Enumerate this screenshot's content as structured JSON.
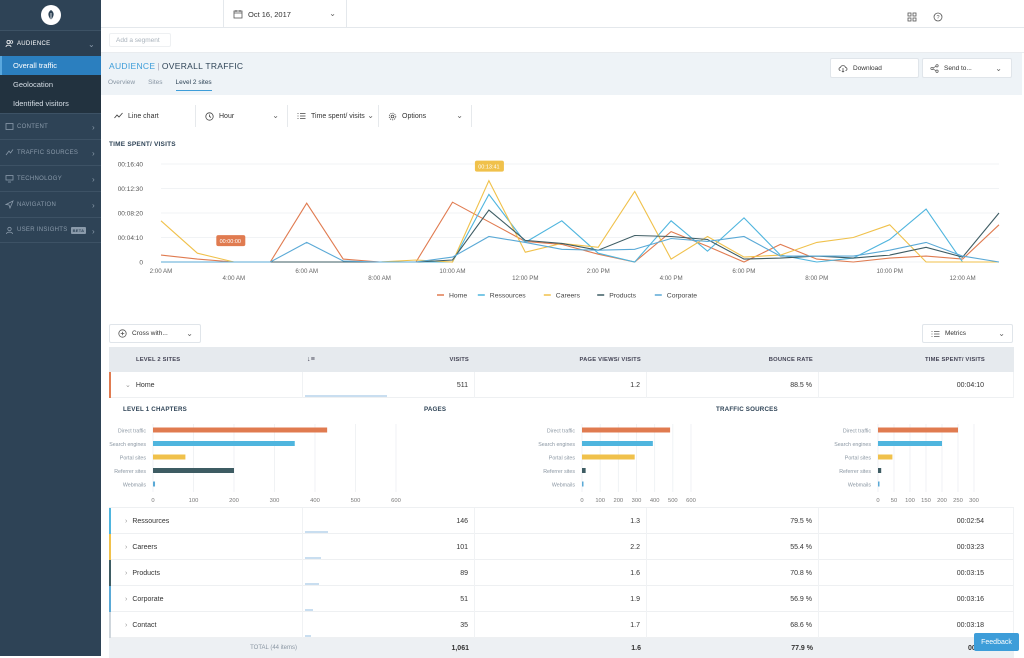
{
  "sidebar": {
    "sections": [
      {
        "label": "AUDIENCE",
        "icon": "users-icon",
        "active": true
      },
      {
        "label": "CONTENT",
        "icon": "content-icon"
      },
      {
        "label": "TRAFFIC SOURCES",
        "icon": "traffic-icon"
      },
      {
        "label": "TECHNOLOGY",
        "icon": "monitor-icon"
      },
      {
        "label": "NAVIGATION",
        "icon": "send-icon"
      },
      {
        "label": "USER INSIGHTS",
        "icon": "user-insights-icon",
        "badge": "BETA"
      }
    ],
    "audience_items": [
      {
        "label": "Overall traffic",
        "selected": true
      },
      {
        "label": "Geolocation"
      },
      {
        "label": "Identified visitors"
      }
    ]
  },
  "topbar": {
    "date": "Oct 16, 2017"
  },
  "segment": {
    "placeholder": "Add a segment"
  },
  "header": {
    "section": "AUDIENCE",
    "page": "OVERALL TRAFFIC",
    "tabs": [
      "Overview",
      "Sites",
      "Level 2 sites"
    ],
    "active_tab": "Level 2 sites",
    "download_label": "Download",
    "send_label": "Send to..."
  },
  "toolbar": {
    "chart_type": "Line chart",
    "granularity": "Hour",
    "metric": "Time spent/ visits",
    "options": "Options"
  },
  "chart_title": "TIME SPENT/ VISITS",
  "chart_data": {
    "type": "line",
    "x": [
      "2:00 AM",
      "3:00 AM",
      "4:00 AM",
      "5:00 AM",
      "6:00 AM",
      "7:00 AM",
      "8:00 AM",
      "9:00 AM",
      "10:00 AM",
      "11:00 AM",
      "12:00 PM",
      "1:00 PM",
      "2:00 PM",
      "3:00 PM",
      "4:00 PM",
      "5:00 PM",
      "6:00 PM",
      "7:00 PM",
      "8:00 PM",
      "9:00 PM",
      "10:00 PM",
      "11:00 PM",
      "12:00 AM",
      "1:00 AM"
    ],
    "x_tick_labels": [
      "2:00 AM",
      "4:00 AM",
      "6:00 AM",
      "8:00 AM",
      "10:00 AM",
      "12:00 PM",
      "2:00 PM",
      "4:00 PM",
      "6:00 PM",
      "8:00 PM",
      "10:00 PM",
      "12:00 AM"
    ],
    "y_tick_labels": [
      "0",
      "00:04:10",
      "00:08:20",
      "00:12:30",
      "00:16:40"
    ],
    "ylim_seconds": [
      0,
      1000
    ],
    "series": [
      {
        "name": "Home",
        "color": "#e07b50",
        "values": [
          70,
          30,
          0,
          0,
          600,
          30,
          0,
          0,
          610,
          410,
          210,
          180,
          80,
          0,
          310,
          160,
          0,
          180,
          30,
          0,
          40,
          60,
          30,
          380
        ]
      },
      {
        "name": "Ressources",
        "color": "#4fb5de",
        "values": [
          0,
          0,
          0,
          0,
          0,
          0,
          0,
          0,
          0,
          690,
          200,
          420,
          90,
          0,
          420,
          110,
          450,
          70,
          0,
          40,
          230,
          540,
          0,
          0
        ]
      },
      {
        "name": "Careers",
        "color": "#f0c14b",
        "values": [
          420,
          90,
          0,
          0,
          0,
          0,
          0,
          20,
          0,
          830,
          100,
          190,
          150,
          720,
          30,
          260,
          50,
          70,
          200,
          250,
          380,
          0,
          0,
          0
        ]
      },
      {
        "name": "Products",
        "color": "#3e5c63",
        "values": [
          0,
          0,
          0,
          0,
          0,
          0,
          0,
          0,
          20,
          530,
          220,
          190,
          120,
          270,
          260,
          230,
          30,
          40,
          60,
          40,
          70,
          150,
          50,
          500
        ]
      },
      {
        "name": "Corporate",
        "color": "#5aa9d6",
        "values": [
          0,
          0,
          0,
          0,
          200,
          10,
          0,
          0,
          50,
          260,
          200,
          130,
          120,
          130,
          240,
          210,
          260,
          60,
          60,
          60,
          120,
          200,
          60,
          0
        ]
      }
    ],
    "annotations": [
      {
        "label": "00:00:00",
        "color": "#e07b50"
      },
      {
        "label": "00:13:41",
        "color": "#f0c14b"
      }
    ],
    "legend": "bottom-center"
  },
  "cross": {
    "label": "Cross with...",
    "metrics_label": "Metrics"
  },
  "table": {
    "headers": [
      "LEVEL 2 SITES",
      "VISITS",
      "PAGE VIEWS/ VISITS",
      "BOUNCE RATE",
      "TIME SPENT/ VISITS"
    ],
    "rows": [
      {
        "name": "Home",
        "visits": "511",
        "pv": "1.2",
        "bounce": "88.5 %",
        "time": "00:04:10",
        "color": "#e07b50",
        "share": 0.42
      },
      {
        "name": "Ressources",
        "visits": "146",
        "pv": "1.3",
        "bounce": "79.5 %",
        "time": "00:02:54",
        "color": "#4fb5de",
        "share": 0.12
      },
      {
        "name": "Careers",
        "visits": "101",
        "pv": "2.2",
        "bounce": "55.4 %",
        "time": "00:03:23",
        "color": "#f0c14b",
        "share": 0.08
      },
      {
        "name": "Products",
        "visits": "89",
        "pv": "1.6",
        "bounce": "70.8 %",
        "time": "00:03:15",
        "color": "#3e5c63",
        "share": 0.07
      },
      {
        "name": "Corporate",
        "visits": "51",
        "pv": "1.9",
        "bounce": "56.9 %",
        "time": "00:03:16",
        "color": "#5aa9d6",
        "share": 0.04
      },
      {
        "name": "Contact",
        "visits": "35",
        "pv": "1.7",
        "bounce": "68.6 %",
        "time": "00:03:18",
        "color": "#cfd6dc",
        "share": 0.03
      }
    ],
    "total": {
      "label": "TOTAL (44 items)",
      "visits": "1,061",
      "pv": "1.6",
      "bounce": "77.9 %",
      "time": "00:0"
    }
  },
  "breakdowns": [
    {
      "title": "LEVEL 1 CHAPTERS",
      "max": 600,
      "ticks": [
        "0",
        "100",
        "200",
        "300",
        "400",
        "500",
        "600"
      ],
      "bars": [
        {
          "label": "Direct traffic",
          "value": 430,
          "color": "#e07b50"
        },
        {
          "label": "Search engines",
          "value": 350,
          "color": "#4fb5de"
        },
        {
          "label": "Portal sites",
          "value": 80,
          "color": "#f0c14b"
        },
        {
          "label": "Referrer sites",
          "value": 200,
          "color": "#3e5c63"
        },
        {
          "label": "Webmails",
          "value": 5,
          "color": "#5aa9d6"
        }
      ]
    },
    {
      "title": "PAGES",
      "max": 600,
      "ticks": [
        "0",
        "100",
        "200",
        "300",
        "400",
        "500",
        "600"
      ],
      "bars": [
        {
          "label": "Direct traffic",
          "value": 485,
          "color": "#e07b50"
        },
        {
          "label": "Search engines",
          "value": 390,
          "color": "#4fb5de"
        },
        {
          "label": "Portal sites",
          "value": 290,
          "color": "#f0c14b"
        },
        {
          "label": "Referrer sites",
          "value": 20,
          "color": "#3e5c63"
        },
        {
          "label": "Webmails",
          "value": 5,
          "color": "#5aa9d6"
        }
      ]
    },
    {
      "title": "TRAFFIC SOURCES",
      "max": 300,
      "ticks": [
        "0",
        "50",
        "100",
        "150",
        "200",
        "250",
        "300"
      ],
      "bars": [
        {
          "label": "Direct traffic",
          "value": 250,
          "color": "#e07b50"
        },
        {
          "label": "Search engines",
          "value": 200,
          "color": "#4fb5de"
        },
        {
          "label": "Portal sites",
          "value": 45,
          "color": "#f0c14b"
        },
        {
          "label": "Referrer sites",
          "value": 10,
          "color": "#3e5c63"
        },
        {
          "label": "Webmails",
          "value": 2,
          "color": "#5aa9d6"
        }
      ]
    }
  ],
  "feedback": "Feedback"
}
